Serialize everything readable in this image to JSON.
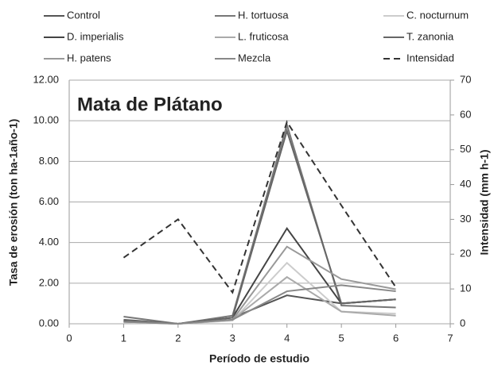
{
  "chart_data": {
    "type": "line",
    "title": "Mata de Plátano",
    "x_label": "Período de estudio",
    "y_label": "Tasa de erosión (ton ha-1año-1)",
    "y2_label": "Intensidad (mm h-1)",
    "x": [
      1,
      2,
      3,
      4,
      5,
      6
    ],
    "xlim": [
      0,
      7
    ],
    "xticks": [
      0,
      1,
      2,
      3,
      4,
      5,
      6,
      7
    ],
    "ylim": [
      0,
      12
    ],
    "yticks": [
      {
        "value": 0,
        "label": "0.00"
      },
      {
        "value": 2,
        "label": "2.00"
      },
      {
        "value": 4,
        "label": "4.00"
      },
      {
        "value": 6,
        "label": "6.00"
      },
      {
        "value": 8,
        "label": "8.00"
      },
      {
        "value": 10,
        "label": "10.00"
      },
      {
        "value": 12,
        "label": "12.00"
      }
    ],
    "y2lim": [
      0,
      70
    ],
    "y2ticks": [
      0,
      10,
      20,
      30,
      40,
      50,
      60,
      70
    ],
    "grid": true,
    "series": [
      {
        "name": "Control",
        "color": "#555555",
        "values": [
          0.1,
          0,
          0.3,
          1.4,
          1.0,
          1.2
        ]
      },
      {
        "name": "H. tortuosa",
        "color": "#777777",
        "values": [
          0.35,
          0,
          0.4,
          9.8,
          0.9,
          0.8
        ]
      },
      {
        "name": "C. nocturnum",
        "color": "#cccccc",
        "values": [
          0.05,
          0,
          0.15,
          3.0,
          0.6,
          0.5
        ]
      },
      {
        "name": "D. imperialis",
        "color": "#444444",
        "values": [
          0.15,
          0,
          0.3,
          4.7,
          1.0,
          1.2
        ]
      },
      {
        "name": "L. fruticosa",
        "color": "#aaaaaa",
        "values": [
          0.1,
          0,
          0.2,
          2.3,
          0.6,
          0.4
        ]
      },
      {
        "name": "T. zanonia",
        "color": "#666666",
        "values": [
          0.2,
          0,
          0.3,
          9.5,
          1.0,
          1.2
        ]
      },
      {
        "name": "H. patens",
        "color": "#999999",
        "values": [
          0.1,
          0,
          0.2,
          3.8,
          2.2,
          1.7
        ]
      },
      {
        "name": "Mezcla",
        "color": "#888888",
        "values": [
          0.1,
          0,
          0.2,
          1.6,
          1.9,
          1.6
        ]
      },
      {
        "name": "Intensidad",
        "color": "#333333",
        "line_style": "dashed",
        "axis": "y2",
        "values": [
          19,
          30,
          9,
          58,
          34,
          10.5
        ]
      }
    ]
  }
}
